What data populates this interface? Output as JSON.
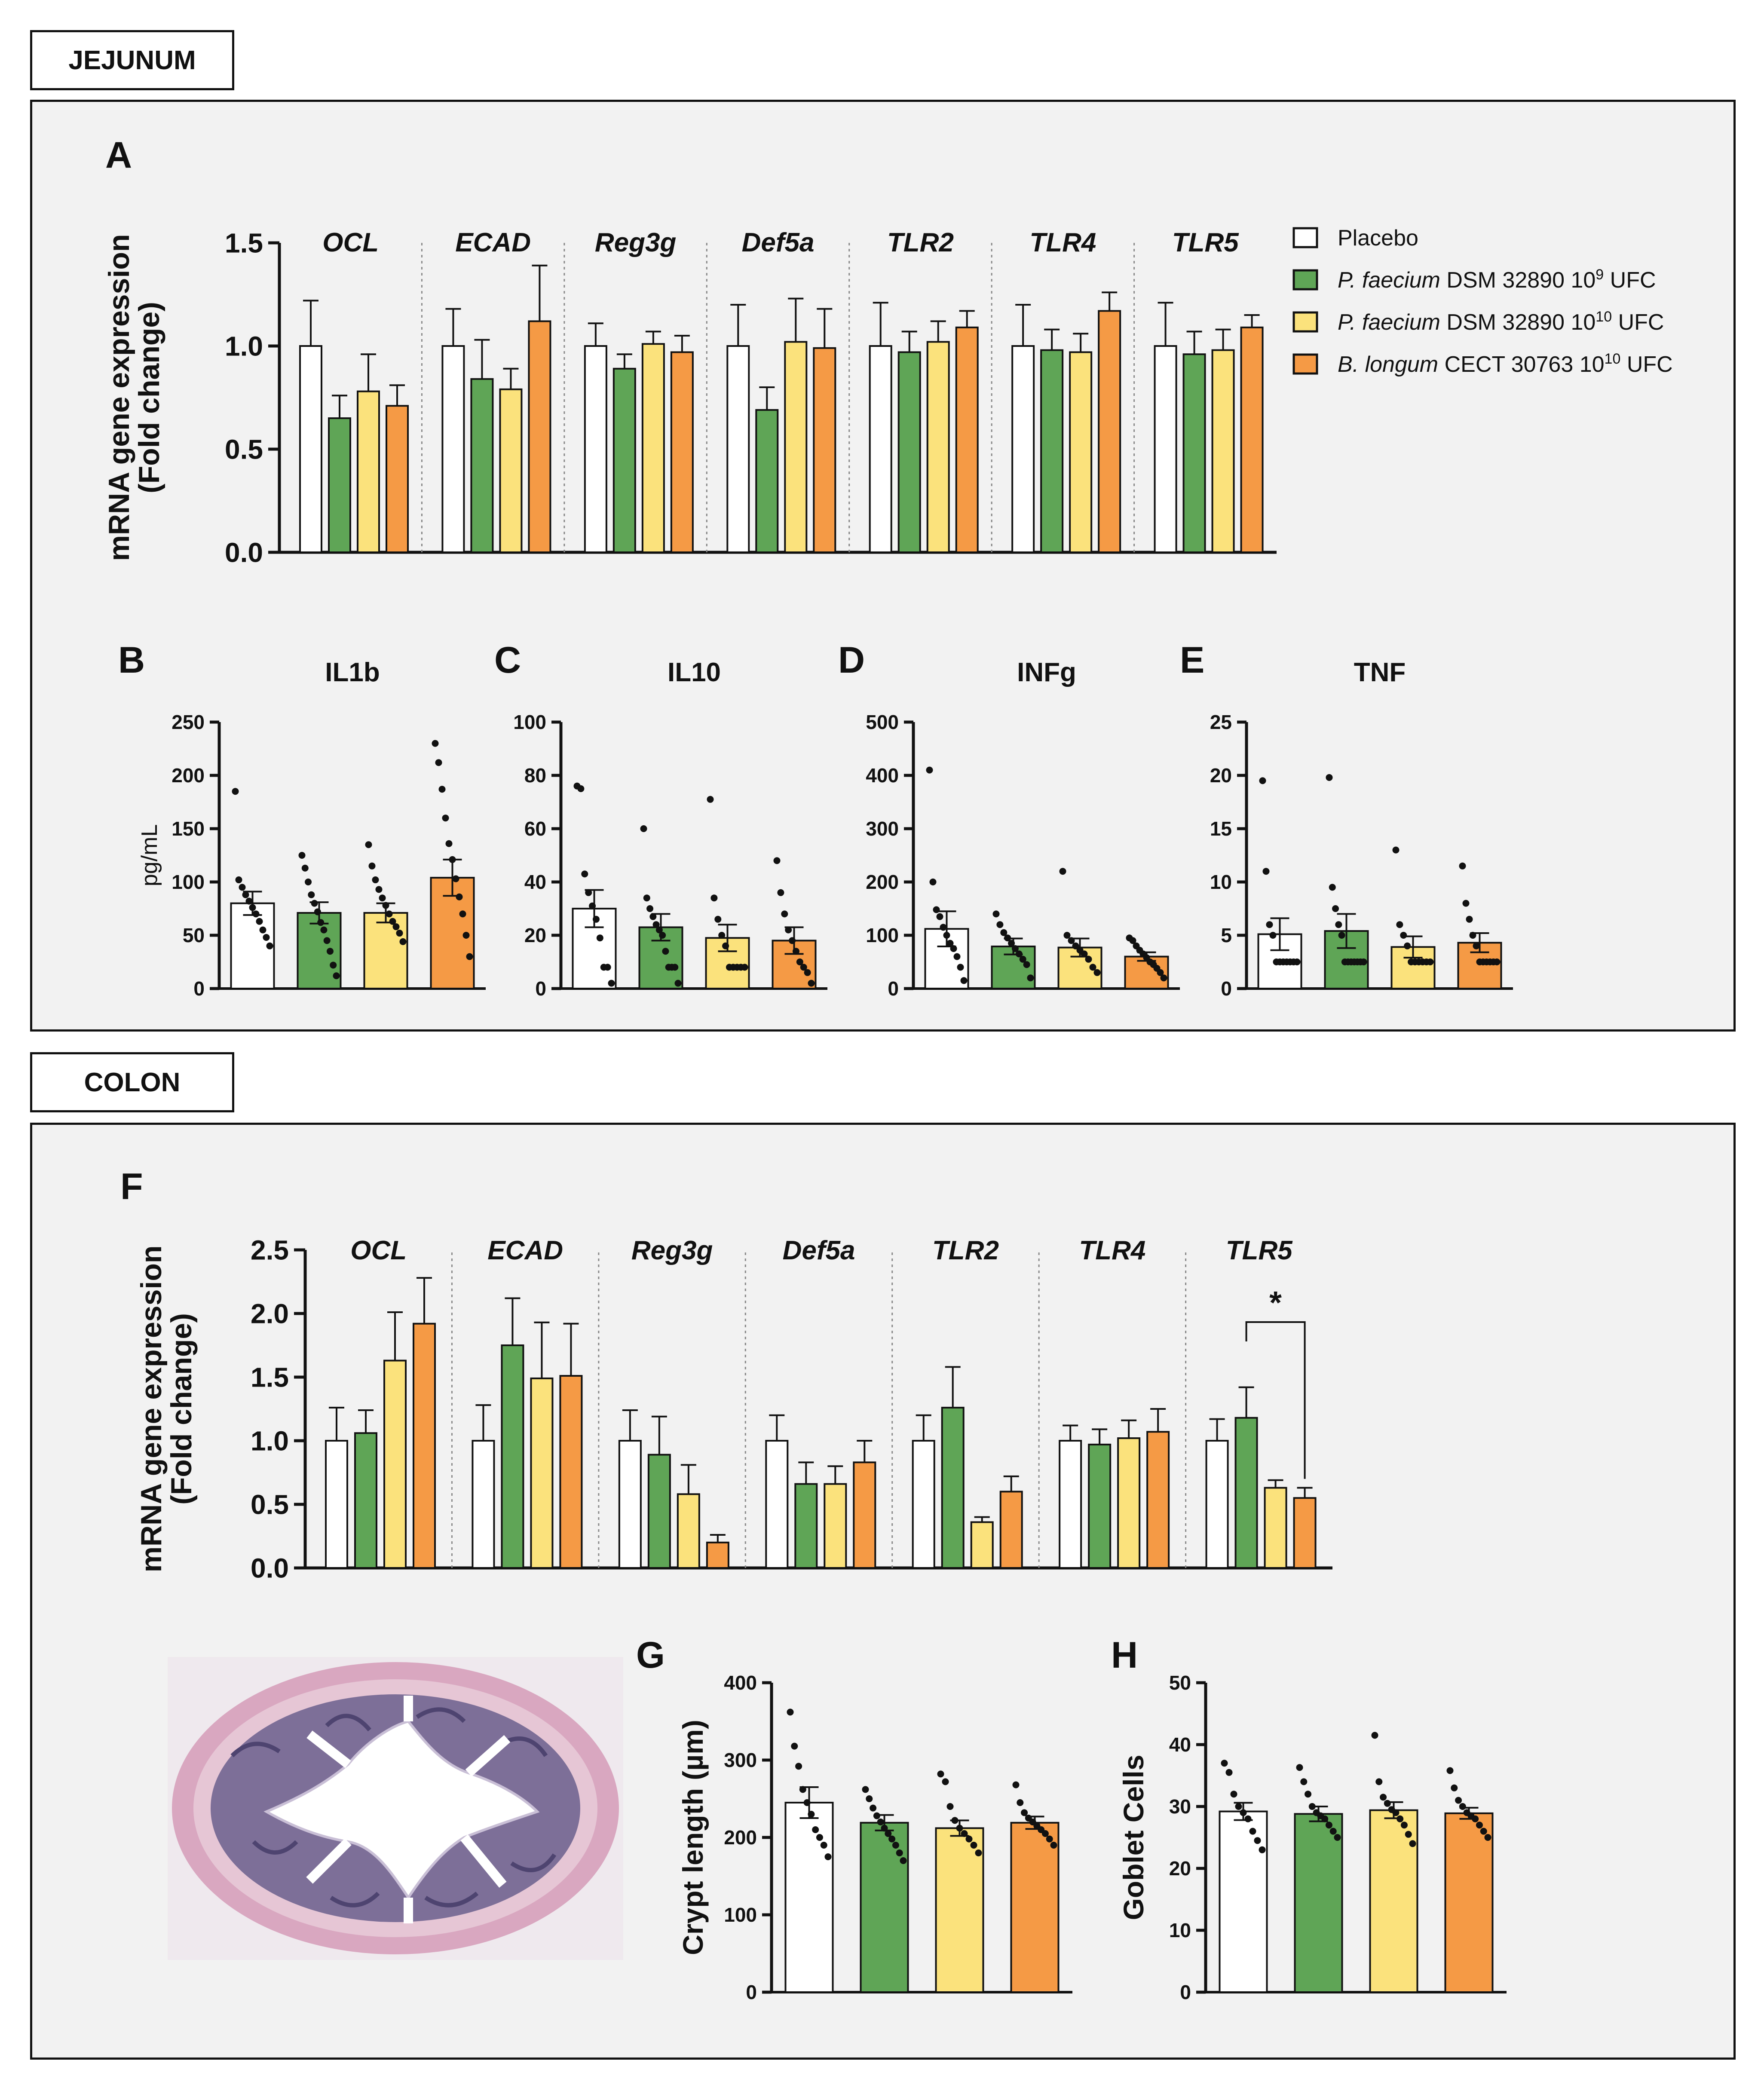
{
  "sections": {
    "jejunum": "JEJUNUM",
    "colon": "COLON"
  },
  "colors": {
    "Placebo": "#ffffff",
    "Pf9": "#5fa556",
    "Pf10": "#fbe27c",
    "Bl10": "#f59a45",
    "stroke": "#111111"
  },
  "legend": [
    {
      "key": "Placebo",
      "pre": "",
      "italic": "",
      "post": "Placebo",
      "sup": "",
      "tail": ""
    },
    {
      "key": "Pf9",
      "pre": "",
      "italic": "P. faecium",
      "post": " DSM 32890 10",
      "sup": "9",
      "tail": " UFC"
    },
    {
      "key": "Pf10",
      "pre": "",
      "italic": "P. faecium",
      "post": " DSM 32890 10",
      "sup": "10",
      "tail": " UFC"
    },
    {
      "key": "Bl10",
      "pre": "",
      "italic": "B. longum",
      "post": " CECT 30763 10",
      "sup": "10",
      "tail": " UFC"
    }
  ],
  "chart_data": [
    {
      "id": "A",
      "letter": "A",
      "type": "bar",
      "ylabel": "mRNA gene expression",
      "ylabel2": "(Fold change)",
      "ylim": [
        0,
        1.5
      ],
      "yticks": [
        "0.0",
        "0.5",
        "1.0",
        "1.5"
      ],
      "categories": [
        "OCL",
        "ECAD",
        "Reg3g",
        "Def5a",
        "TLR2",
        "TLR4",
        "TLR5"
      ],
      "series": [
        {
          "name": "Placebo",
          "values": [
            1.0,
            1.0,
            1.0,
            1.0,
            1.0,
            1.0,
            1.0
          ],
          "err": [
            0.22,
            0.18,
            0.11,
            0.2,
            0.21,
            0.2,
            0.21
          ]
        },
        {
          "name": "P. faecium DSM 32890 10^9 UFC",
          "values": [
            0.65,
            0.84,
            0.89,
            0.69,
            0.97,
            0.98,
            0.96
          ],
          "err": [
            0.11,
            0.19,
            0.07,
            0.11,
            0.1,
            0.1,
            0.11
          ]
        },
        {
          "name": "P. faecium DSM 32890 10^10 UFC",
          "values": [
            0.78,
            0.79,
            1.01,
            1.02,
            1.02,
            0.97,
            0.98
          ],
          "err": [
            0.18,
            0.1,
            0.06,
            0.21,
            0.1,
            0.09,
            0.1
          ]
        },
        {
          "name": "B. longum CECT 30763 10^10 UFC",
          "values": [
            0.71,
            1.12,
            0.97,
            0.99,
            1.09,
            1.17,
            1.09
          ],
          "err": [
            0.1,
            0.27,
            0.08,
            0.19,
            0.08,
            0.09,
            0.06
          ]
        }
      ],
      "significance": []
    },
    {
      "id": "B",
      "letter": "B",
      "type": "bar-scatter",
      "title": "IL1b",
      "ylabel": "pg/mL",
      "ylim": [
        0,
        250
      ],
      "yticks": [
        "0",
        "50",
        "100",
        "150",
        "200",
        "250"
      ],
      "categories": [
        "Placebo",
        "Pf9",
        "Pf10",
        "Bl10"
      ],
      "values": [
        80,
        71,
        71,
        104
      ],
      "err": [
        11,
        10,
        9,
        17
      ],
      "points": [
        [
          185,
          102,
          95,
          88,
          82,
          76,
          70,
          63,
          55,
          48,
          40
        ],
        [
          125,
          113,
          100,
          88,
          80,
          72,
          62,
          55,
          45,
          35,
          22,
          12
        ],
        [
          135,
          115,
          102,
          93,
          85,
          78,
          70,
          63,
          58,
          52,
          44
        ],
        [
          230,
          212,
          187,
          160,
          136,
          121,
          103,
          86,
          70,
          50,
          30
        ]
      ]
    },
    {
      "id": "C",
      "letter": "C",
      "type": "bar-scatter",
      "title": "IL10",
      "ylabel": "",
      "ylim": [
        0,
        100
      ],
      "yticks": [
        "0",
        "20",
        "40",
        "60",
        "80",
        "100"
      ],
      "categories": [
        "Placebo",
        "Pf9",
        "Pf10",
        "Bl10"
      ],
      "values": [
        30,
        23,
        19,
        18
      ],
      "err": [
        7,
        5,
        5,
        5
      ],
      "points": [
        [
          76,
          75,
          43,
          36,
          31,
          26,
          19,
          8,
          8,
          2
        ],
        [
          60,
          34,
          30,
          27,
          24,
          22,
          20,
          14,
          8,
          8,
          8,
          2
        ],
        [
          71,
          34,
          26,
          20,
          16,
          8,
          8,
          8,
          8,
          8
        ],
        [
          48,
          36,
          28,
          22,
          18,
          14,
          10,
          8,
          6,
          2
        ]
      ]
    },
    {
      "id": "D",
      "letter": "D",
      "type": "bar-scatter",
      "title": "INFg",
      "ylabel": "",
      "ylim": [
        0,
        500
      ],
      "yticks": [
        "0",
        "100",
        "200",
        "300",
        "400",
        "500"
      ],
      "categories": [
        "Placebo",
        "Pf9",
        "Pf10",
        "Bl10"
      ],
      "values": [
        112,
        79,
        77,
        60
      ],
      "err": [
        33,
        15,
        17,
        8
      ],
      "points": [
        [
          410,
          200,
          148,
          135,
          115,
          100,
          85,
          75,
          60,
          40,
          15
        ],
        [
          140,
          120,
          105,
          95,
          85,
          75,
          65,
          55,
          45,
          20
        ],
        [
          220,
          100,
          90,
          80,
          72,
          65,
          55,
          40,
          30
        ],
        [
          95,
          90,
          80,
          72,
          65,
          58,
          50,
          45,
          38,
          30,
          20
        ]
      ]
    },
    {
      "id": "E",
      "letter": "E",
      "type": "bar-scatter",
      "title": "TNF",
      "ylabel": "",
      "ylim": [
        0,
        25
      ],
      "yticks": [
        "0",
        "5",
        "10",
        "15",
        "20",
        "25"
      ],
      "categories": [
        "Placebo",
        "Pf9",
        "Pf10",
        "Bl10"
      ],
      "values": [
        5.1,
        5.4,
        3.9,
        4.3
      ],
      "err": [
        1.5,
        1.6,
        1.0,
        0.9
      ],
      "points": [
        [
          19.5,
          11,
          6,
          5,
          2.5,
          2.5,
          2.5,
          2.5,
          2.5,
          2.5,
          2.5
        ],
        [
          19.8,
          9.5,
          7.5,
          6,
          5,
          2.5,
          2.5,
          2.5,
          2.5,
          2.5,
          2.5,
          2.5
        ],
        [
          13,
          6,
          5,
          4,
          2.5,
          2.5,
          2.5,
          2.5,
          2.5,
          2.5
        ],
        [
          11.5,
          8,
          6.5,
          5,
          4,
          2.5,
          2.5,
          2.5,
          2.5,
          2.5,
          2.5
        ]
      ]
    },
    {
      "id": "F",
      "letter": "F",
      "type": "bar",
      "ylabel": "mRNA gene expression",
      "ylabel2": "(Fold change)",
      "ylim": [
        0,
        2.5
      ],
      "yticks": [
        "0.0",
        "0.5",
        "1.0",
        "1.5",
        "2.0",
        "2.5"
      ],
      "categories": [
        "OCL",
        "ECAD",
        "Reg3g",
        "Def5a",
        "TLR2",
        "TLR4",
        "TLR5"
      ],
      "series": [
        {
          "name": "Placebo",
          "values": [
            1.0,
            1.0,
            1.0,
            1.0,
            1.0,
            1.0,
            1.0
          ],
          "err": [
            0.26,
            0.28,
            0.24,
            0.2,
            0.2,
            0.12,
            0.17
          ]
        },
        {
          "name": "P. faecium DSM 32890 10^9 UFC",
          "values": [
            1.06,
            1.75,
            0.89,
            0.66,
            1.26,
            0.97,
            1.18
          ],
          "err": [
            0.18,
            0.37,
            0.3,
            0.17,
            0.32,
            0.12,
            0.24
          ]
        },
        {
          "name": "P. faecium DSM 32890 10^10 UFC",
          "values": [
            1.63,
            1.49,
            0.58,
            0.66,
            0.36,
            1.02,
            0.63
          ],
          "err": [
            0.38,
            0.44,
            0.23,
            0.14,
            0.04,
            0.14,
            0.06
          ]
        },
        {
          "name": "B. longum CECT 30763 10^10 UFC",
          "values": [
            1.92,
            1.51,
            0.2,
            0.83,
            0.6,
            1.07,
            0.55
          ],
          "err": [
            0.36,
            0.41,
            0.06,
            0.17,
            0.12,
            0.18,
            0.08
          ]
        }
      ],
      "significance": [
        {
          "category": 6,
          "from": 1,
          "to": 3,
          "label": "*"
        }
      ]
    },
    {
      "id": "G",
      "letter": "G",
      "type": "bar-scatter",
      "title": "",
      "ylabel": "Crypt length (µm)",
      "ylim": [
        0,
        400
      ],
      "yticks": [
        "0",
        "100",
        "200",
        "300",
        "400"
      ],
      "categories": [
        "Placebo",
        "Pf9",
        "Pf10",
        "Bl10"
      ],
      "values": [
        245,
        219,
        212,
        219
      ],
      "err": [
        20,
        10,
        10,
        8
      ],
      "points": [
        [
          362,
          318,
          292,
          262,
          245,
          230,
          210,
          200,
          190,
          175
        ],
        [
          262,
          250,
          238,
          228,
          220,
          212,
          205,
          198,
          190,
          180,
          170
        ],
        [
          282,
          272,
          240,
          222,
          212,
          205,
          198,
          190,
          180
        ],
        [
          268,
          245,
          232,
          225,
          220,
          215,
          210,
          205,
          198,
          190
        ]
      ]
    },
    {
      "id": "H",
      "letter": "H",
      "type": "bar-scatter",
      "title": "",
      "ylabel": "Goblet Cells",
      "ylim": [
        0,
        50
      ],
      "yticks": [
        "0",
        "10",
        "20",
        "30",
        "40",
        "50"
      ],
      "categories": [
        "Placebo",
        "Pf9",
        "Pf10",
        "Bl10"
      ],
      "values": [
        29.2,
        28.8,
        29.4,
        28.9
      ],
      "err": [
        1.4,
        1.2,
        1.3,
        0.9
      ],
      "points": [
        [
          37,
          35.5,
          32,
          30,
          29,
          28,
          26,
          24.5,
          23
        ],
        [
          36.3,
          34,
          32,
          30,
          29,
          28.5,
          28,
          27,
          26,
          25
        ],
        [
          41.5,
          34,
          31.5,
          30.5,
          29.5,
          29,
          28,
          27,
          25.5,
          24
        ],
        [
          35.8,
          33,
          31,
          30,
          29,
          28.5,
          28,
          27,
          26,
          25
        ]
      ]
    }
  ]
}
